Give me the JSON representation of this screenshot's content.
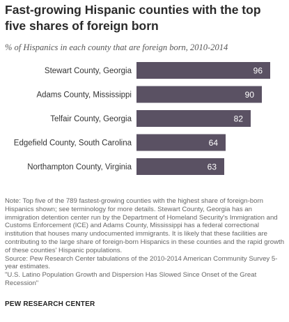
{
  "title": "Fast-growing Hispanic counties with the top five shares of foreign born",
  "subtitle": "% of Hispanics in each county that are foreign born, 2010-2014",
  "chart_data": {
    "type": "bar",
    "orientation": "horizontal",
    "categories": [
      "Stewart County, Georgia",
      "Adams County, Mississippi",
      "Telfair County, Georgia",
      "Edgefield County, South Carolina",
      "Northampton County, Virginia"
    ],
    "values": [
      96,
      90,
      82,
      64,
      63
    ],
    "data_labels": [
      "96",
      "90",
      "82",
      "64",
      "63"
    ],
    "bar_color": "#5a5163",
    "label_color": "#ffffff",
    "xlim": [
      0,
      100
    ]
  },
  "notes": {
    "note": "Note: Top five of the 789 fastest-growing counties with the highest share of foreign-born Hispanics shown; see terminology for more details. Stewart County, Georgia has an immigration detention center run by the Department of Homeland Security's Immigration and Customs Enforcement (ICE) and Adams County, Mississippi has a federal correctional institution that houses many undocumented immigrants. It is likely that these facilities are contributing to the large share of foreign-born Hispanics in these counties and the rapid growth of these counties' Hispanic populations.",
    "source": "Source: Pew Research Center tabulations of the 2010-2014 American Community Survey 5-year estimates.",
    "report": "\"U.S. Latino Population Growth and Dispersion Has Slowed Since Onset of the Great Recession\""
  },
  "brand": "PEW RESEARCH CENTER"
}
